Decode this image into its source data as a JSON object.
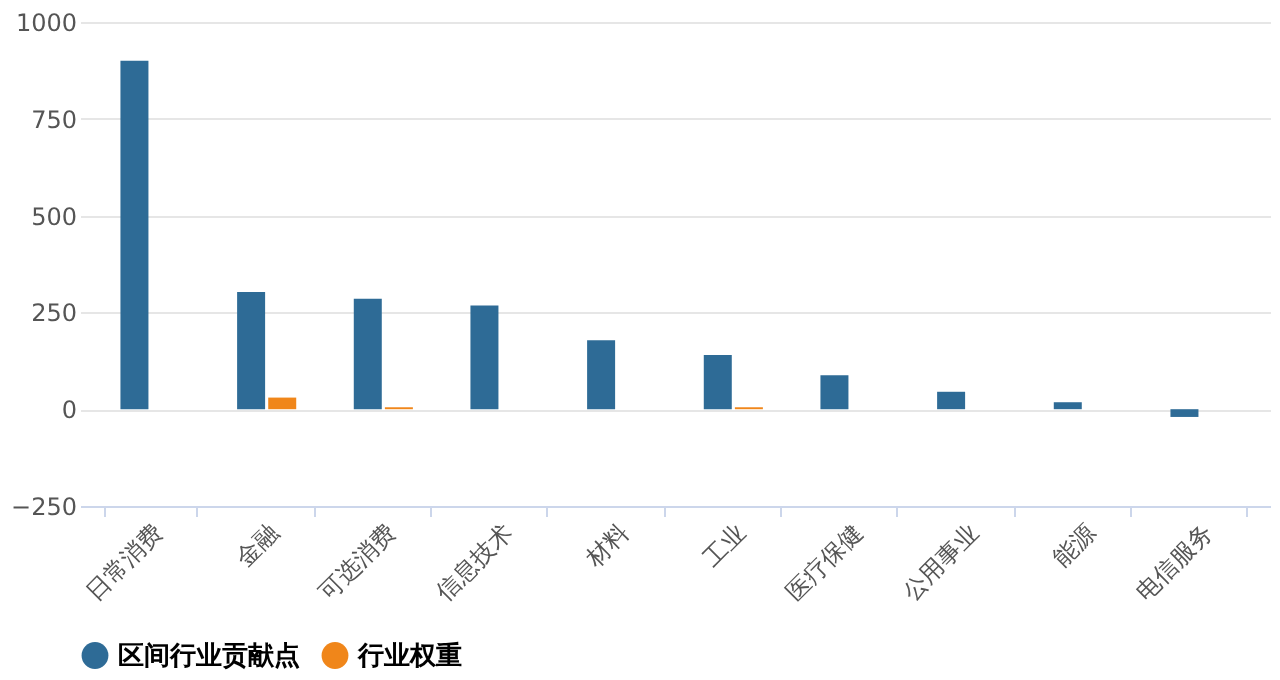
{
  "chart_data": {
    "type": "bar",
    "categories": [
      "日常消费",
      "金融",
      "可选消费",
      "信息技术",
      "材料",
      "工业",
      "医疗保健",
      "公用事业",
      "能源",
      "电信服务"
    ],
    "series": [
      {
        "name": "区间行业贡献点",
        "color": "#2e6b96",
        "values": [
          900,
          303,
          285,
          268,
          178,
          140,
          88,
          45,
          18,
          -20
        ]
      },
      {
        "name": "行业权重",
        "color": "#f0861a",
        "values": [
          0,
          30,
          5,
          0,
          0,
          5,
          0,
          0,
          0,
          0
        ]
      }
    ],
    "ylim": [
      -250,
      1000
    ],
    "yticks": [
      -250,
      0,
      250,
      500,
      750,
      1000
    ],
    "grid": "y",
    "legend": "bottom"
  }
}
